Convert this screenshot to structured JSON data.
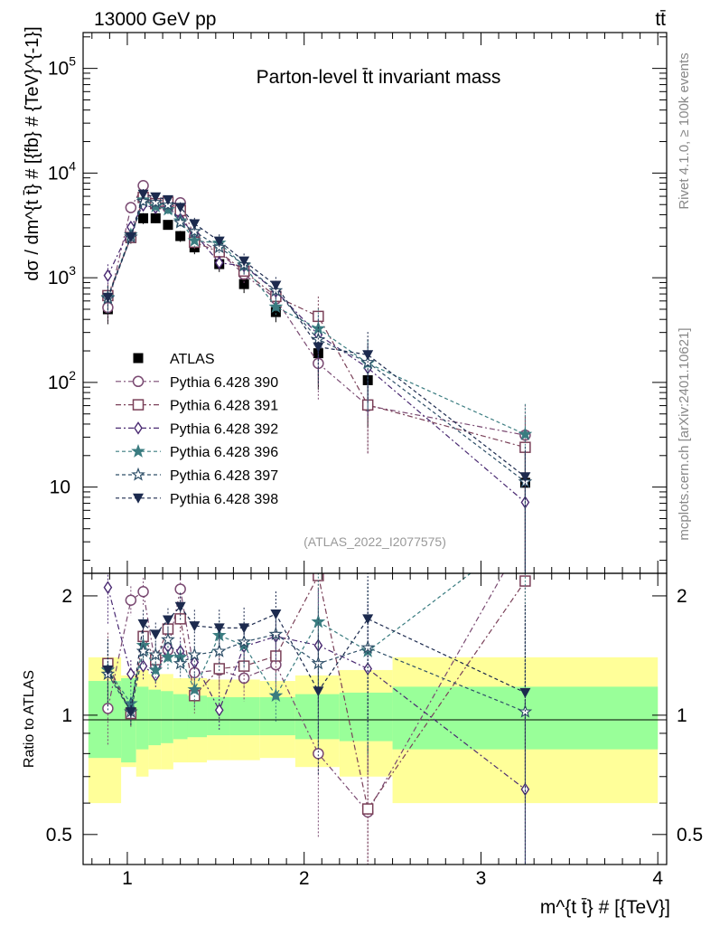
{
  "header": {
    "energy": "13000 GeV pp",
    "process": "tt̄"
  },
  "side_texts": {
    "rivet": "Rivet 4.1.0, ≥ 100k events",
    "mcplots": "mcplots.cern.ch [arXiv:2401.10621]"
  },
  "chart_data": {
    "type": "scatter",
    "title": "Parton-level t̄t invariant mass",
    "analysis_tag": "(ATLAS_2022_I2077575)",
    "xlabel": "m^{t t̄} # [{TeV}]",
    "ylabel": "dσ / dm^{t t̄} # [{fb} # {TeV}^{-1}]",
    "ratio_ylabel": "Ratio to ATLAS",
    "xlim": [
      0.75,
      4.05
    ],
    "ylim_main": [
      1.5,
      220000
    ],
    "ylim_ratio": [
      0.42,
      2.28
    ],
    "y_log": true,
    "x_ticks": [
      "1",
      "2",
      "3",
      "4"
    ],
    "y_ticks_main": [
      "10",
      "10^2",
      "10^3",
      "10^4",
      "10^5"
    ],
    "y_ticks_ratio": [
      "0.5",
      "1",
      "2"
    ],
    "x": [
      0.89,
      1.02,
      1.09,
      1.16,
      1.23,
      1.3,
      1.38,
      1.52,
      1.66,
      1.84,
      2.08,
      2.36,
      3.25
    ],
    "bins": [
      [
        0.78,
        0.965
      ],
      [
        0.965,
        1.05
      ],
      [
        1.05,
        1.12
      ],
      [
        1.12,
        1.19
      ],
      [
        1.19,
        1.26
      ],
      [
        1.26,
        1.34
      ],
      [
        1.34,
        1.45
      ],
      [
        1.45,
        1.58
      ],
      [
        1.58,
        1.75
      ],
      [
        1.75,
        1.95
      ],
      [
        1.95,
        2.2
      ],
      [
        2.2,
        2.5
      ],
      [
        2.5,
        4.0
      ]
    ],
    "band_inner": [
      0.22,
      0.24,
      0.18,
      0.16,
      0.15,
      0.13,
      0.12,
      0.11,
      0.11,
      0.11,
      0.13,
      0.14,
      0.18
    ],
    "band_outer": [
      0.4,
      0.26,
      0.3,
      0.27,
      0.27,
      0.24,
      0.24,
      0.23,
      0.23,
      0.22,
      0.26,
      0.3,
      0.4
    ],
    "series": [
      {
        "name": "ATLAS",
        "marker": "square-filled",
        "color": "#000000",
        "dash": "",
        "values": [
          500,
          2400,
          3700,
          3700,
          3200,
          2500,
          1950,
          1350,
          870,
          470,
          190,
          105,
          11
        ]
      },
      {
        "name": "Pythia 6.428 390",
        "marker": "circle-open",
        "color": "#7a4a72",
        "dash": "6,3,2,3",
        "ratio": [
          1.04,
          1.95,
          2.05,
          1.33,
          1.46,
          2.08,
          1.28,
          1.3,
          1.24,
          1.34,
          0.8,
          0.57,
          2.85
        ]
      },
      {
        "name": "Pythia 6.428 391",
        "marker": "square-open",
        "color": "#7a4058",
        "dash": "6,3,2,3",
        "ratio": [
          1.35,
          1.01,
          1.58,
          1.38,
          1.65,
          1.75,
          1.12,
          1.31,
          1.33,
          1.41,
          2.25,
          0.58,
          2.18
        ]
      },
      {
        "name": "Pythia 6.428 392",
        "marker": "diamond-open",
        "color": "#4a2a72",
        "dash": "6,3,2,3",
        "ratio": [
          2.1,
          1.27,
          1.33,
          1.26,
          1.49,
          1.45,
          1.36,
          1.03,
          1.49,
          1.58,
          1.5,
          1.31,
          0.65
        ]
      },
      {
        "name": "Pythia 6.428 396",
        "marker": "star-filled",
        "color": "#3a7c80",
        "dash": "4,3",
        "ratio": [
          1.3,
          1.07,
          1.5,
          1.3,
          1.4,
          1.4,
          1.16,
          1.59,
          1.5,
          1.12,
          1.72,
          1.45,
          2.9
        ]
      },
      {
        "name": "Pythia 6.428 397",
        "marker": "star-open",
        "color": "#2e4f68",
        "dash": "4,3",
        "ratio": [
          1.27,
          1.02,
          1.45,
          1.42,
          1.55,
          1.35,
          1.42,
          1.45,
          1.53,
          1.6,
          1.35,
          1.48,
          1.02
        ]
      },
      {
        "name": "Pythia 6.428 398",
        "marker": "triangle-down-filled",
        "color": "#1c2a4e",
        "dash": "4,3",
        "ratio": [
          1.3,
          1.02,
          1.7,
          1.6,
          1.74,
          1.88,
          1.68,
          1.66,
          1.66,
          1.8,
          1.15,
          1.75,
          1.14
        ]
      }
    ]
  }
}
